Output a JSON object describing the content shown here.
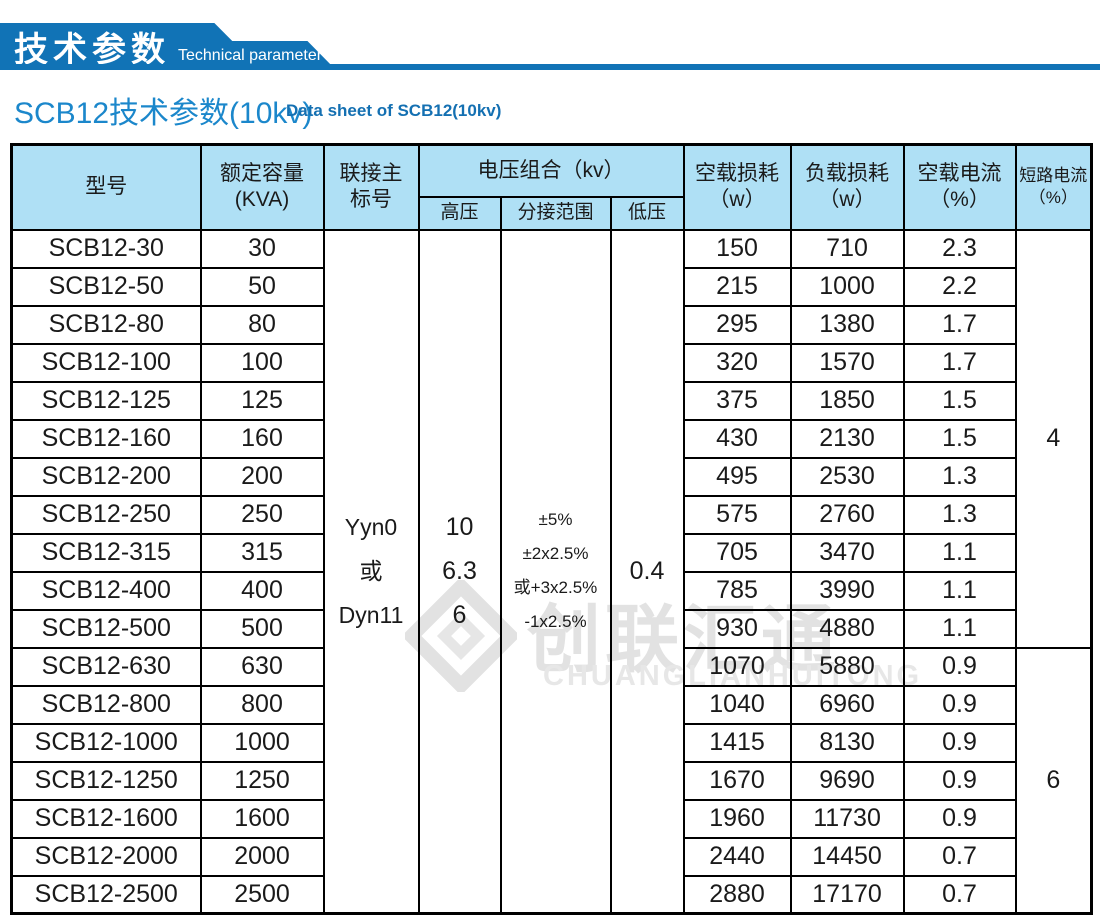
{
  "banner": {
    "title_zh": "技术参数",
    "title_en": "Technical parameter",
    "color": "#1173b6"
  },
  "section_title": {
    "zh": "SCB12技术参数(10kv)",
    "en": "Data sheet of SCB12(10kv)"
  },
  "watermark": {
    "zh": "创联汇通",
    "en": "CHUANGLIANHUITONG"
  },
  "table": {
    "header": {
      "model": "型号",
      "capacity_l1": "额定容量",
      "capacity_l2": "(KVA)",
      "connection_l1": "联接主",
      "connection_l2": "标号",
      "voltage_group": "电压组合（kv）",
      "hv": "高压",
      "tap_range": "分接范围",
      "lv": "低压",
      "no_load_loss_l1": "空载损耗",
      "no_load_loss_l2": "（w）",
      "load_loss_l1": "负载损耗",
      "load_loss_l2": "（w）",
      "no_load_current_l1": "空载电流",
      "no_load_current_l2": "（%）",
      "short_circuit_l1": "短路电流",
      "short_circuit_l2": "（%）"
    },
    "merged": {
      "connection_lines": [
        "Yyn0",
        "或",
        "Dyn11"
      ],
      "hv_lines": [
        "10",
        "6.3",
        "6"
      ],
      "tap_lines": [
        "±5%",
        "±2x2.5%",
        "或+3x2.5%",
        "-1x2.5%"
      ],
      "lv": "0.4",
      "short_circuit_groups": [
        {
          "value": "4",
          "row_count": 11
        },
        {
          "value": "6",
          "row_count": 7
        }
      ]
    },
    "rows": [
      {
        "model": "SCB12-30",
        "capacity": "30",
        "no_load_loss": "150",
        "load_loss": "710",
        "no_load_current": "2.3"
      },
      {
        "model": "SCB12-50",
        "capacity": "50",
        "no_load_loss": "215",
        "load_loss": "1000",
        "no_load_current": "2.2"
      },
      {
        "model": "SCB12-80",
        "capacity": "80",
        "no_load_loss": "295",
        "load_loss": "1380",
        "no_load_current": "1.7"
      },
      {
        "model": "SCB12-100",
        "capacity": "100",
        "no_load_loss": "320",
        "load_loss": "1570",
        "no_load_current": "1.7"
      },
      {
        "model": "SCB12-125",
        "capacity": "125",
        "no_load_loss": "375",
        "load_loss": "1850",
        "no_load_current": "1.5"
      },
      {
        "model": "SCB12-160",
        "capacity": "160",
        "no_load_loss": "430",
        "load_loss": "2130",
        "no_load_current": "1.5"
      },
      {
        "model": "SCB12-200",
        "capacity": "200",
        "no_load_loss": "495",
        "load_loss": "2530",
        "no_load_current": "1.3"
      },
      {
        "model": "SCB12-250",
        "capacity": "250",
        "no_load_loss": "575",
        "load_loss": "2760",
        "no_load_current": "1.3"
      },
      {
        "model": "SCB12-315",
        "capacity": "315",
        "no_load_loss": "705",
        "load_loss": "3470",
        "no_load_current": "1.1"
      },
      {
        "model": "SCB12-400",
        "capacity": "400",
        "no_load_loss": "785",
        "load_loss": "3990",
        "no_load_current": "1.1"
      },
      {
        "model": "SCB12-500",
        "capacity": "500",
        "no_load_loss": "930",
        "load_loss": "4880",
        "no_load_current": "1.1"
      },
      {
        "model": "SCB12-630",
        "capacity": "630",
        "no_load_loss": "1070",
        "load_loss": "5880",
        "no_load_current": "0.9"
      },
      {
        "model": "SCB12-800",
        "capacity": "800",
        "no_load_loss": "1040",
        "load_loss": "6960",
        "no_load_current": "0.9"
      },
      {
        "model": "SCB12-1000",
        "capacity": "1000",
        "no_load_loss": "1415",
        "load_loss": "8130",
        "no_load_current": "0.9"
      },
      {
        "model": "SCB12-1250",
        "capacity": "1250",
        "no_load_loss": "1670",
        "load_loss": "9690",
        "no_load_current": "0.9"
      },
      {
        "model": "SCB12-1600",
        "capacity": "1600",
        "no_load_loss": "1960",
        "load_loss": "11730",
        "no_load_current": "0.9"
      },
      {
        "model": "SCB12-2000",
        "capacity": "2000",
        "no_load_loss": "2440",
        "load_loss": "14450",
        "no_load_current": "0.7"
      },
      {
        "model": "SCB12-2500",
        "capacity": "2500",
        "no_load_loss": "2880",
        "load_loss": "17170",
        "no_load_current": "0.7"
      }
    ]
  }
}
